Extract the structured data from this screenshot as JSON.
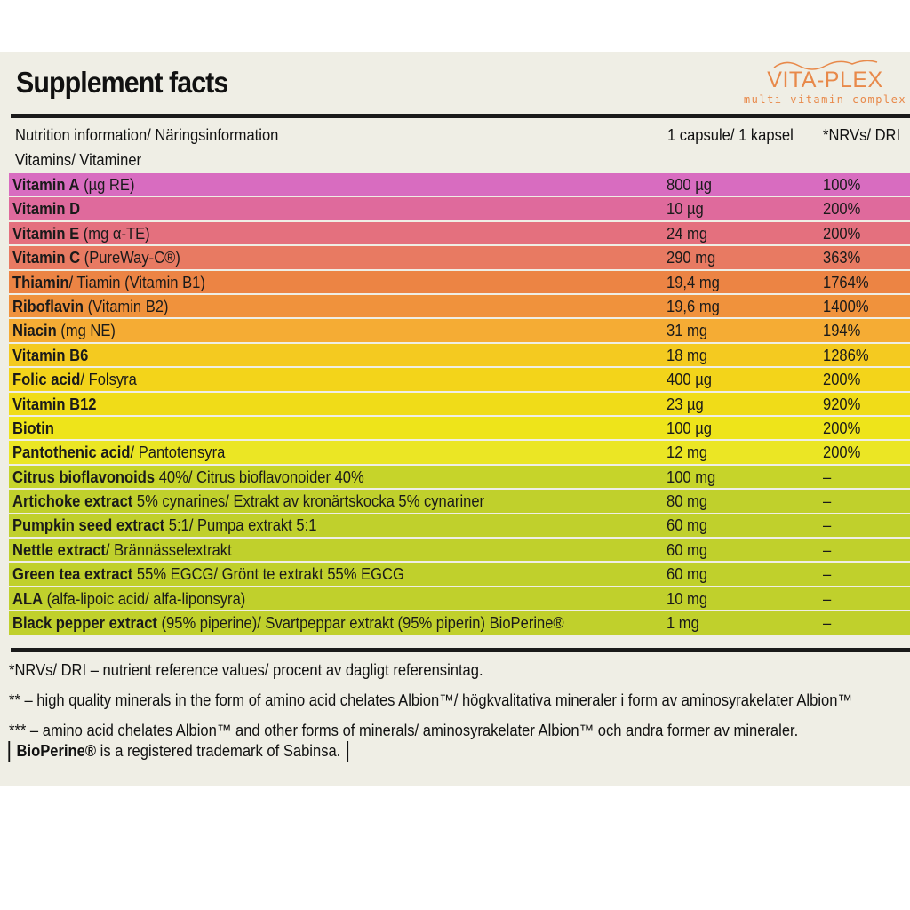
{
  "title": "Supplement facts",
  "logo": {
    "brand": "VITA-PLEX",
    "tagline": "multi-vitamin complex",
    "color": "#e8894a"
  },
  "header": {
    "info": "Nutrition information/ Näringsinformation",
    "section": "Vitamins/ Vitaminer",
    "amount_col": "1 capsule/ 1 kapsel",
    "nrv_col": "*NRVs/ DRI"
  },
  "rows": [
    {
      "bold": "Vitamin A",
      "rest": " (µg RE)",
      "amount": "800 µg",
      "nrv": "100%",
      "color": "#d86cc0"
    },
    {
      "bold": "Vitamin D",
      "rest": "",
      "amount": "10 µg",
      "nrv": "200%",
      "color": "#df6a9c"
    },
    {
      "bold": "Vitamin E",
      "rest": " (mg α-TE)",
      "amount": "24 mg",
      "nrv": "200%",
      "color": "#e4707e"
    },
    {
      "bold": "Vitamin C",
      "rest": " (PureWay-C®)",
      "amount": "290 mg",
      "nrv": "363%",
      "color": "#e87a62"
    },
    {
      "bold": "Thiamin",
      "rest": "/ Tiamin (Vitamin B1)",
      "amount": "19,4 mg",
      "nrv": "1764%",
      "color": "#ec8444"
    },
    {
      "bold": "Riboflavin",
      "rest": " (Vitamin B2)",
      "amount": "19,6 mg",
      "nrv": "1400%",
      "color": "#f0923c"
    },
    {
      "bold": "Niacin",
      "rest": " (mg NE)",
      "amount": "31 mg",
      "nrv": "194%",
      "color": "#f5ac34"
    },
    {
      "bold": "Vitamin B6",
      "rest": "",
      "amount": "18 mg",
      "nrv": "1286%",
      "color": "#f4ca20"
    },
    {
      "bold": "Folic acid",
      "rest": "/ Folsyra",
      "amount": "400 µg",
      "nrv": "200%",
      "color": "#f3d41a"
    },
    {
      "bold": "Vitamin B12",
      "rest": "",
      "amount": "23 µg",
      "nrv": "920%",
      "color": "#f0dc18"
    },
    {
      "bold": "Biotin",
      "rest": "",
      "amount": "100 µg",
      "nrv": "200%",
      "color": "#eee41a"
    },
    {
      "bold": "Pantothenic acid",
      "rest": "/ Pantotensyra",
      "amount": "12 mg",
      "nrv": "200%",
      "color": "#ebe624"
    },
    {
      "bold": "Citrus bioflavonoids",
      "rest": " 40%/ Citrus bioflavonoider 40%",
      "amount": "100 mg",
      "nrv": "–",
      "color": "#c6d42a"
    },
    {
      "bold": "Artichoke extract",
      "rest": " 5% cynarines/ Extrakt av kronärtskocka 5% cynariner",
      "amount": "80 mg",
      "nrv": "–",
      "color": "#c0d02c"
    },
    {
      "bold": "Pumpkin seed extract",
      "rest": " 5:1/ Pumpa extrakt 5:1",
      "amount": "60 mg",
      "nrv": "–",
      "color": "#c0d02c"
    },
    {
      "bold": "Nettle extract",
      "rest": "/ Brännässelextrakt",
      "amount": "60 mg",
      "nrv": "–",
      "color": "#c0d02c"
    },
    {
      "bold": "Green tea extract",
      "rest": " 55% EGCG/ Grönt te extrakt 55% EGCG",
      "amount": "60 mg",
      "nrv": "–",
      "color": "#c0d02c"
    },
    {
      "bold": "ALA",
      "rest": " (alfa-lipoic acid/ alfa-liponsyra)",
      "amount": "10 mg",
      "nrv": "–",
      "color": "#c0d02c"
    },
    {
      "bold": "Black pepper extract",
      "rest": " (95% piperine)/ Svartpeppar extrakt (95% piperin) BioPerine®",
      "amount": "1 mg",
      "nrv": "–",
      "color": "#c0d02c"
    }
  ],
  "footnotes": [
    "*NRVs/ DRI – nutrient reference values/ procent av dagligt referensintag.",
    "** – high quality minerals in the form of amino acid chelates Albion™/ högkvalitativa mineraler i form av aminosyrakelater Albion™",
    "*** – amino acid chelates Albion™ and other forms of minerals/ aminosyrakelater Albion™ och andra former av mineraler."
  ],
  "trademark": {
    "bold": "BioPerine®",
    "rest": " is a registered trademark of Sabinsa."
  }
}
